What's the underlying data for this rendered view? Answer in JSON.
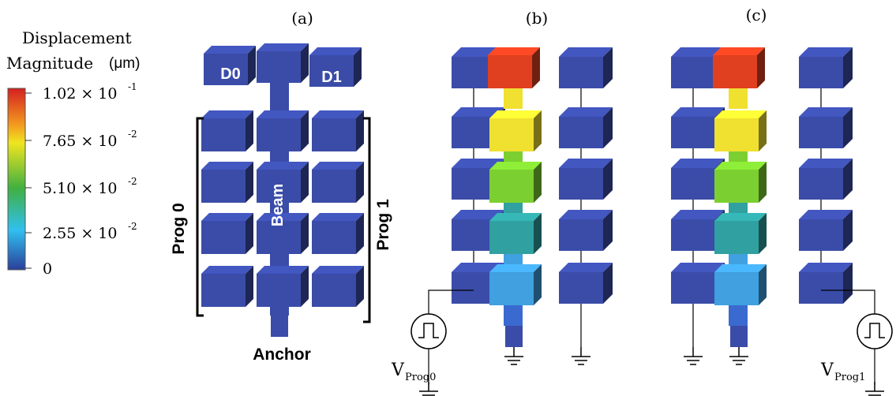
{
  "panels": [
    "(a)",
    "(b)",
    "(c)"
  ],
  "colorbar": {
    "title_line1": "Displacement",
    "title_line2": "Magnitude",
    "unit": "(μm)",
    "ticks": [
      {
        "mantissa": "1.02 × 10",
        "exponent": "-1"
      },
      {
        "mantissa": "7.65 × 10",
        "exponent": "-2"
      },
      {
        "mantissa": "5.10 × 10",
        "exponent": "-2"
      },
      {
        "mantissa": "2.55 × 10",
        "exponent": "-2"
      },
      {
        "mantissa": "0"
      }
    ]
  },
  "labels": {
    "d0": "D0",
    "d1": "D1",
    "beam": "Beam",
    "prog0": "Prog 0",
    "prog1": "Prog 1",
    "anchor": "Anchor"
  },
  "sources": [
    {
      "symbol": "V",
      "subscript": "Prog0"
    },
    {
      "symbol": "V",
      "subscript": "Prog1"
    }
  ]
}
